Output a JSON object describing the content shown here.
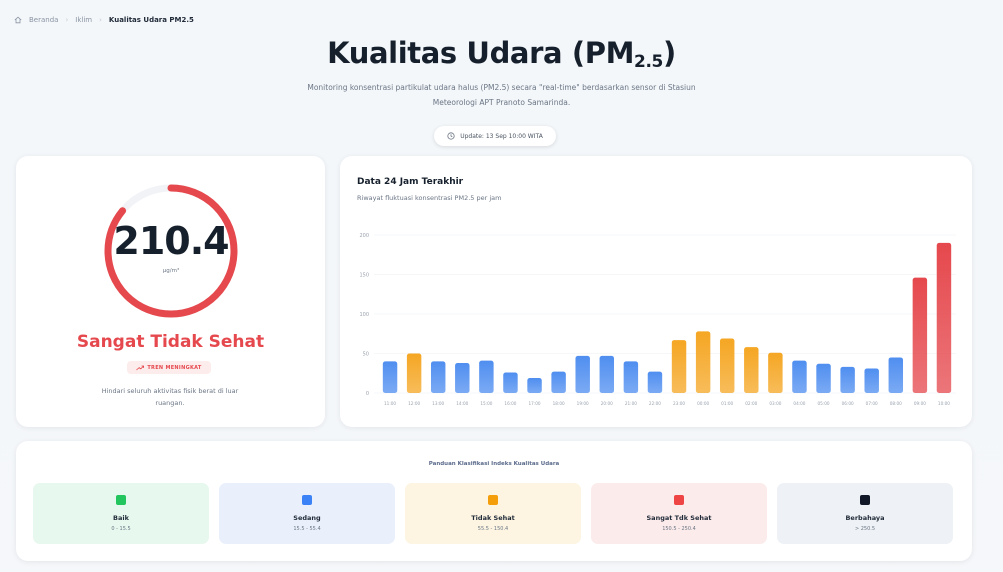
{
  "breadcrumb": {
    "home": "Beranda",
    "section": "Iklim",
    "current": "Kualitas Udara PM2.5"
  },
  "header": {
    "title_main": "Kualitas Udara (PM",
    "title_sub": "2.5",
    "title_close": ")",
    "subtitle": "Monitoring konsentrasi partikulat udara halus (PM2.5) secara \"real-time\" berdasarkan sensor di Stasiun Meteorologi APT Pranoto Samarinda.",
    "update": "Update: 13 Sep 10:00 WITA"
  },
  "current": {
    "value": "210.4",
    "unit": "µg/m³",
    "gauge_fraction": 0.86,
    "status": "Sangat Tidak Sehat",
    "trend": "TREN MENINGKAT",
    "advice": "Hindari seluruh aktivitas fisik berat di luar ruangan."
  },
  "chart_section": {
    "title": "Data 24 Jam Terakhir",
    "subtitle": "Riwayat fluktuasi konsentrasi PM2.5 per jam"
  },
  "chart_data": {
    "type": "bar",
    "categories": [
      "11:00",
      "12:00",
      "13:00",
      "14:00",
      "15:00",
      "16:00",
      "17:00",
      "18:00",
      "19:00",
      "20:00",
      "21:00",
      "22:00",
      "23:00",
      "00:00",
      "01:00",
      "02:00",
      "03:00",
      "04:00",
      "05:00",
      "06:00",
      "07:00",
      "08:00",
      "09:00",
      "10:00"
    ],
    "values": [
      40,
      50,
      40,
      38,
      41,
      26,
      19,
      27,
      47,
      47,
      40,
      27,
      67,
      78,
      69,
      58,
      51,
      41,
      37,
      33,
      31,
      45,
      146,
      190
    ],
    "colors": [
      "#4f8ef0",
      "#f5a623",
      "#4f8ef0",
      "#4f8ef0",
      "#4f8ef0",
      "#4f8ef0",
      "#4f8ef0",
      "#4f8ef0",
      "#4f8ef0",
      "#4f8ef0",
      "#4f8ef0",
      "#4f8ef0",
      "#f5a623",
      "#f5a623",
      "#f5a623",
      "#f5a623",
      "#f5a623",
      "#4f8ef0",
      "#4f8ef0",
      "#4f8ef0",
      "#4f8ef0",
      "#4f8ef0",
      "#e5484d",
      "#e5484d"
    ],
    "yticks": [
      "200",
      "150",
      "100",
      "50",
      "0"
    ],
    "ylim": [
      0,
      200
    ],
    "grid": true
  },
  "legend": {
    "title": "Panduan Klasifikasi Indeks Kualitas Udara",
    "items": [
      {
        "name": "Baik",
        "range": "0 - 15.5",
        "color": "#22c55e",
        "bg": "#e7f8ee"
      },
      {
        "name": "Sedang",
        "range": "15.5 - 55.4",
        "color": "#3b82f6",
        "bg": "#e9f0fc"
      },
      {
        "name": "Tidak Sehat",
        "range": "55.5 - 150.4",
        "color": "#f59e0b",
        "bg": "#fdf5e2"
      },
      {
        "name": "Sangat Tdk Sehat",
        "range": "150.5 - 250.4",
        "color": "#ef4444",
        "bg": "#fcebeb"
      },
      {
        "name": "Berbahaya",
        "range": "> 250.5",
        "color": "#111827",
        "bg": "#eef1f5"
      }
    ]
  }
}
